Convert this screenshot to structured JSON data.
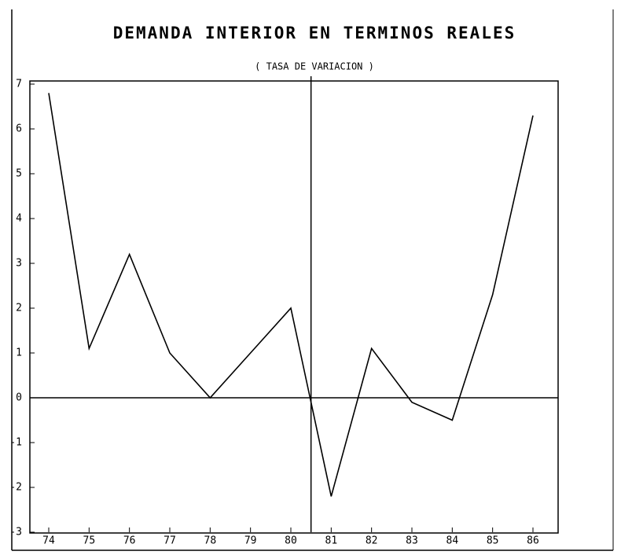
{
  "chart_data": {
    "type": "line",
    "title": "DEMANDA INTERIOR EN TERMINOS REALES",
    "subtitle": "( TASA DE VARIACION )",
    "categories": [
      "74",
      "75",
      "76",
      "77",
      "78",
      "79",
      "80",
      "81",
      "82",
      "83",
      "84",
      "85",
      "86"
    ],
    "values": [
      6.8,
      1.1,
      3.2,
      1.0,
      0,
      1.0,
      2.0,
      -2.2,
      1.1,
      -0.1,
      -0.5,
      2.3,
      6.3
    ],
    "color": "#000000",
    "ylim": [
      -3,
      7
    ],
    "yticks": [
      -3,
      -2,
      -1,
      0,
      1,
      2,
      3,
      4,
      5,
      6,
      7
    ]
  }
}
